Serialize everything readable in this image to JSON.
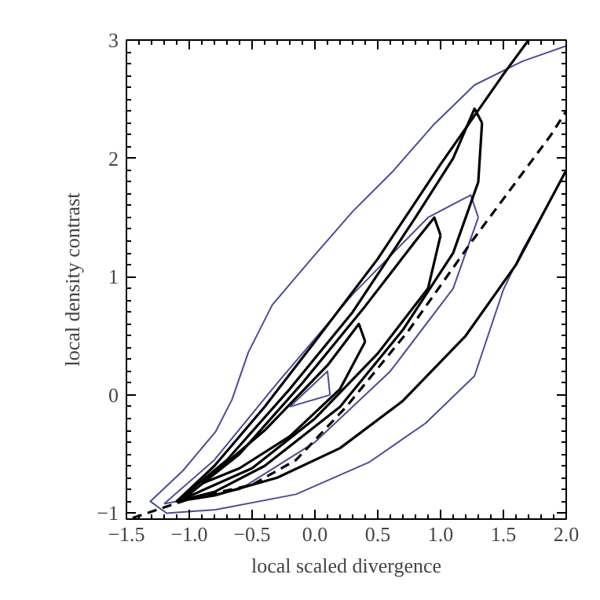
{
  "chart_data": {
    "type": "line",
    "xlabel": "local scaled divergence",
    "ylabel": "local density contrast",
    "xlim": [
      -1.5,
      2.0
    ],
    "ylim": [
      -1.05,
      3.0
    ],
    "xticks": [
      {
        "value": -1.5,
        "label": "−1.5"
      },
      {
        "value": -1.0,
        "label": "−1.0"
      },
      {
        "value": -0.5,
        "label": "−0.5"
      },
      {
        "value": 0.0,
        "label": "0.0"
      },
      {
        "value": 0.5,
        "label": "0.5"
      },
      {
        "value": 1.0,
        "label": "1.0"
      },
      {
        "value": 1.5,
        "label": "1.5"
      },
      {
        "value": 2.0,
        "label": "2.0"
      }
    ],
    "yticks": [
      {
        "value": -1,
        "label": "−1"
      },
      0,
      1,
      2,
      3
    ],
    "grid": false,
    "marker": "none",
    "series": [
      {
        "color": "#4b4b9b",
        "line_style": "solid",
        "x": [
          2.0,
          1.65,
          1.5,
          1.27,
          0.88,
          0.43,
          -0.15,
          -0.79,
          -1.18,
          -1.31,
          -1.05,
          -0.79,
          -0.66,
          -0.53,
          -0.34,
          -0.02,
          0.3,
          0.62,
          0.95,
          1.27,
          1.65,
          2.0
        ],
        "values": [
          1.89,
          1.22,
          0.89,
          0.16,
          -0.24,
          -0.57,
          -0.84,
          -0.97,
          -1.0,
          -0.9,
          -0.64,
          -0.31,
          -0.04,
          0.36,
          0.76,
          1.16,
          1.55,
          1.89,
          2.29,
          2.62,
          2.82,
          2.95
        ]
      },
      {
        "color": "#4b4b9b",
        "line_style": "solid",
        "x": [
          -1.2,
          -0.8,
          -0.3,
          0.3,
          0.9,
          1.24,
          1.3
        ],
        "values": [
          -0.92,
          -0.55,
          0.1,
          0.85,
          1.5,
          1.69,
          1.5
        ]
      },
      {
        "color": "#4b4b9b",
        "line_style": "solid",
        "x": [
          -1.2,
          -0.6,
          0.0,
          0.6,
          1.1,
          1.3
        ],
        "values": [
          -0.92,
          -0.8,
          -0.4,
          0.2,
          0.9,
          1.5
        ]
      },
      {
        "color": "#4b4b9b",
        "line_style": "solid",
        "x": [
          -0.2,
          0.1,
          0.12
        ],
        "values": [
          -0.1,
          0.2,
          0.0
        ]
      },
      {
        "color": "#4b4b9b",
        "line_style": "solid",
        "x": [
          -0.2,
          0.12
        ],
        "values": [
          -0.1,
          0.0
        ]
      },
      {
        "color": "#000000",
        "line_style": "solid",
        "x": [
          2.0,
          1.6,
          1.2,
          0.7,
          0.2,
          -0.3,
          -0.8,
          -1.1,
          -0.8,
          -0.4,
          0.0,
          0.5,
          1.0,
          1.5,
          1.7
        ],
        "values": [
          1.9,
          1.1,
          0.5,
          -0.05,
          -0.45,
          -0.7,
          -0.85,
          -0.9,
          -0.6,
          -0.1,
          0.45,
          1.15,
          1.95,
          2.71,
          3.0
        ]
      },
      {
        "color": "#000000",
        "line_style": "solid",
        "x": [
          -1.1,
          -0.7,
          -0.2,
          0.3,
          0.8,
          1.1,
          1.27,
          1.33
        ],
        "values": [
          -0.9,
          -0.55,
          0.05,
          0.7,
          1.5,
          2.0,
          2.42,
          2.3
        ]
      },
      {
        "color": "#000000",
        "line_style": "solid",
        "x": [
          -1.1,
          -0.8,
          -0.4,
          0.2,
          0.7,
          1.1,
          1.3,
          1.33
        ],
        "values": [
          -0.9,
          -0.82,
          -0.6,
          -0.1,
          0.55,
          1.2,
          1.8,
          2.3
        ]
      },
      {
        "color": "#000000",
        "line_style": "solid",
        "x": [
          -1.05,
          -0.6,
          -0.1,
          0.4,
          0.8,
          0.95,
          1.0
        ],
        "values": [
          -0.88,
          -0.5,
          0.1,
          0.75,
          1.3,
          1.5,
          1.35
        ]
      },
      {
        "color": "#000000",
        "line_style": "solid",
        "x": [
          -1.05,
          -0.5,
          0.0,
          0.5,
          0.9,
          1.0
        ],
        "values": [
          -0.88,
          -0.62,
          -0.2,
          0.35,
          0.9,
          1.35
        ]
      },
      {
        "color": "#000000",
        "line_style": "solid",
        "x": [
          -0.9,
          -0.4,
          0.1,
          0.35,
          0.4
        ],
        "values": [
          -0.75,
          -0.3,
          0.25,
          0.6,
          0.45
        ]
      },
      {
        "color": "#000000",
        "line_style": "solid",
        "x": [
          -0.9,
          -0.6,
          -0.2,
          0.2,
          0.4
        ],
        "values": [
          -0.75,
          -0.62,
          -0.35,
          0.05,
          0.45
        ]
      },
      {
        "color": "#000000",
        "line_style": "dashed",
        "x": [
          -1.45,
          -1.0,
          -0.5,
          -0.15,
          0.25,
          0.75,
          1.25,
          1.88,
          2.0
        ],
        "values": [
          -1.04,
          -0.88,
          -0.76,
          -0.55,
          -0.1,
          0.55,
          1.3,
          2.2,
          2.4
        ]
      }
    ]
  }
}
